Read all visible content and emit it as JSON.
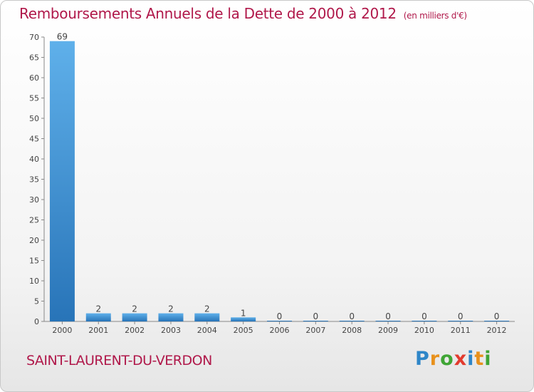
{
  "chart_data": {
    "type": "bar",
    "title": "Remboursements Annuels de la Dette de 2000 à 2012",
    "subtitle": "(en milliers d'€)",
    "categories": [
      "2000",
      "2001",
      "2002",
      "2003",
      "2004",
      "2005",
      "2006",
      "2007",
      "2008",
      "2009",
      "2010",
      "2011",
      "2012"
    ],
    "values": [
      69,
      2,
      2,
      2,
      2,
      1,
      0,
      0,
      0,
      0,
      0,
      0,
      0
    ],
    "ylim": [
      0,
      70
    ],
    "yticks": [
      0,
      5,
      10,
      15,
      20,
      25,
      30,
      35,
      40,
      45,
      50,
      55,
      60,
      65,
      70
    ],
    "xlabel": "",
    "ylabel": "",
    "grid": false,
    "bar_color": "#3a8fd6"
  },
  "footer": {
    "commune": "SAINT-LAURENT-DU-VERDON",
    "logo_letters": [
      {
        "ch": "P",
        "color": "#2e86c8"
      },
      {
        "ch": "r",
        "color": "#e8911c"
      },
      {
        "ch": "o",
        "color": "#3fa535"
      },
      {
        "ch": "x",
        "color": "#e23b2e"
      },
      {
        "ch": "i",
        "color": "#2e86c8"
      },
      {
        "ch": "t",
        "color": "#e8911c"
      },
      {
        "ch": "i",
        "color": "#3fa535"
      }
    ]
  }
}
